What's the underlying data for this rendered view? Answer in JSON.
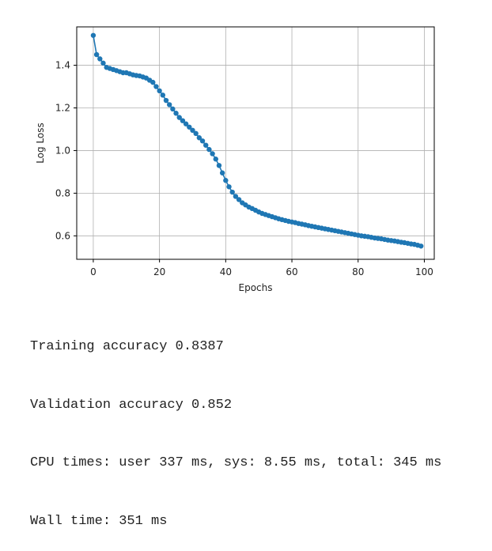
{
  "chart_data": {
    "type": "line",
    "xlabel": "Epochs",
    "ylabel": "Log Loss",
    "xlim": [
      -5,
      103
    ],
    "ylim": [
      0.49,
      1.58
    ],
    "grid": true,
    "xticks": [
      0,
      20,
      40,
      60,
      80,
      100
    ],
    "yticks": [
      0.6,
      0.8,
      1.0,
      1.2,
      1.4
    ],
    "xtick_labels": [
      "0",
      "20",
      "40",
      "60",
      "80",
      "100"
    ],
    "ytick_labels": [
      "0.6",
      "0.8",
      "1.0",
      "1.2",
      "1.4"
    ],
    "marker": "circle",
    "series": [
      {
        "color": "#1f77b4",
        "x": [
          0,
          1,
          2,
          3,
          4,
          5,
          6,
          7,
          8,
          9,
          10,
          11,
          12,
          13,
          14,
          15,
          16,
          17,
          18,
          19,
          20,
          21,
          22,
          23,
          24,
          25,
          26,
          27,
          28,
          29,
          30,
          31,
          32,
          33,
          34,
          35,
          36,
          37,
          38,
          39,
          40,
          41,
          42,
          43,
          44,
          45,
          46,
          47,
          48,
          49,
          50,
          51,
          52,
          53,
          54,
          55,
          56,
          57,
          58,
          59,
          60,
          61,
          62,
          63,
          64,
          65,
          66,
          67,
          68,
          69,
          70,
          71,
          72,
          73,
          74,
          75,
          76,
          77,
          78,
          79,
          80,
          81,
          82,
          83,
          84,
          85,
          86,
          87,
          88,
          89,
          90,
          91,
          92,
          93,
          94,
          95,
          96,
          97,
          98,
          99
        ],
        "values": [
          1.54,
          1.45,
          1.43,
          1.41,
          1.39,
          1.385,
          1.38,
          1.375,
          1.37,
          1.365,
          1.365,
          1.36,
          1.355,
          1.352,
          1.35,
          1.345,
          1.34,
          1.33,
          1.32,
          1.3,
          1.28,
          1.26,
          1.235,
          1.215,
          1.195,
          1.175,
          1.155,
          1.14,
          1.125,
          1.11,
          1.095,
          1.08,
          1.06,
          1.045,
          1.025,
          1.005,
          0.985,
          0.96,
          0.93,
          0.895,
          0.86,
          0.83,
          0.805,
          0.785,
          0.77,
          0.755,
          0.745,
          0.735,
          0.728,
          0.72,
          0.712,
          0.705,
          0.7,
          0.695,
          0.69,
          0.685,
          0.68,
          0.676,
          0.672,
          0.668,
          0.665,
          0.662,
          0.658,
          0.655,
          0.652,
          0.648,
          0.645,
          0.642,
          0.639,
          0.636,
          0.633,
          0.63,
          0.627,
          0.624,
          0.621,
          0.618,
          0.615,
          0.612,
          0.609,
          0.606,
          0.603,
          0.6,
          0.598,
          0.596,
          0.593,
          0.59,
          0.588,
          0.586,
          0.583,
          0.58,
          0.578,
          0.576,
          0.573,
          0.57,
          0.568,
          0.565,
          0.562,
          0.56,
          0.556,
          0.552
        ]
      }
    ]
  },
  "output_lines": [
    "Training accuracy 0.8387",
    "Validation accuracy 0.852",
    "CPU times: user 337 ms, sys: 8.55 ms, total: 345 ms",
    "Wall time: 351 ms"
  ]
}
